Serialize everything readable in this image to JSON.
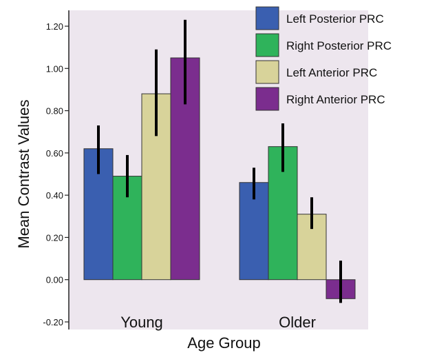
{
  "chart_data": {
    "type": "bar",
    "title": "",
    "xlabel": "Age Group",
    "ylabel": "Mean Contrast Values",
    "ylim": [
      -0.2,
      1.2
    ],
    "yticks": [
      -0.2,
      0.0,
      0.2,
      0.4,
      0.6,
      0.8,
      1.0,
      1.2
    ],
    "ytick_labels": [
      "-0.20",
      "0.00",
      "0.20",
      "0.40",
      "0.60",
      "0.80",
      "1.00",
      "1.20"
    ],
    "categories": [
      "Young",
      "Older"
    ],
    "grid": false,
    "legend_position": "top-right",
    "background_color": "#ede6ee",
    "error_bars": true,
    "series": [
      {
        "name": "Left Posterior PRC",
        "color": "#3a5fb0",
        "values": [
          0.62,
          0.46
        ],
        "err_low": [
          0.5,
          0.38
        ],
        "err_high": [
          0.73,
          0.53
        ]
      },
      {
        "name": "Right Posterior PRC",
        "color": "#2fb35b",
        "values": [
          0.49,
          0.63
        ],
        "err_low": [
          0.39,
          0.51
        ],
        "err_high": [
          0.59,
          0.74
        ]
      },
      {
        "name": "Left Anterior PRC",
        "color": "#d8d39a",
        "values": [
          0.88,
          0.31
        ],
        "err_low": [
          0.68,
          0.24
        ],
        "err_high": [
          1.09,
          0.39
        ]
      },
      {
        "name": "Right Anterior PRC",
        "color": "#7b2d8e",
        "values": [
          1.05,
          -0.09
        ],
        "err_low": [
          0.83,
          -0.11
        ],
        "err_high": [
          1.23,
          0.09
        ]
      }
    ]
  }
}
